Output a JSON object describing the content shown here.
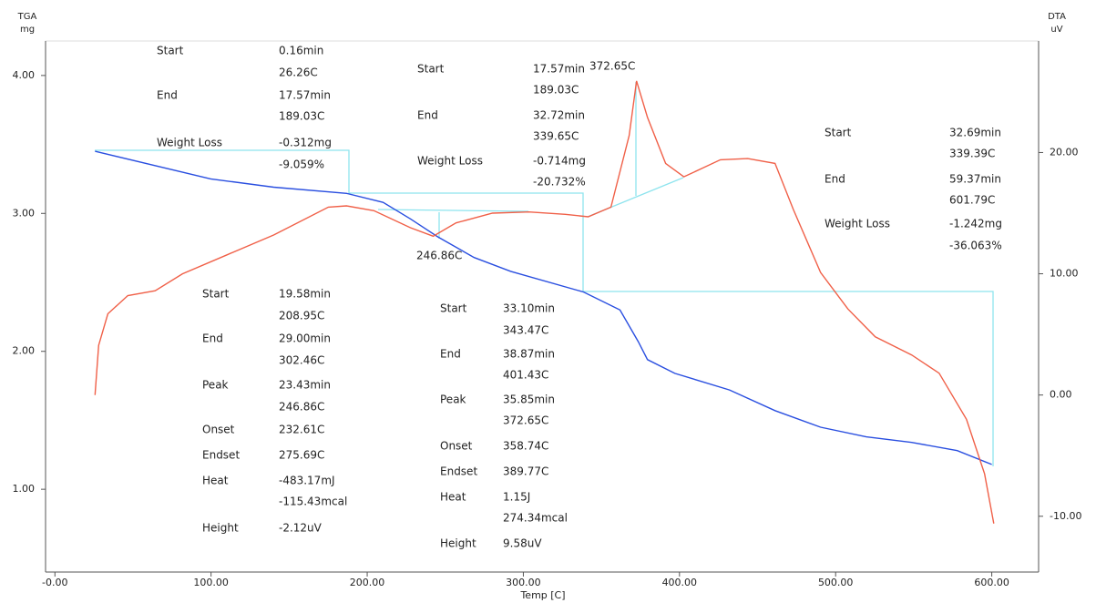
{
  "chart_data": {
    "type": "line",
    "y_label_top": "TGA",
    "y_label_unit": "mg",
    "y2_label_top": "DTA",
    "y2_label_unit": "uV",
    "x_label": "Temp [C]",
    "xlim": [
      -6,
      630
    ],
    "ylim": [
      0.4,
      4.25
    ],
    "y2lim": [
      -14.6,
      29.2
    ],
    "xticks": [
      {
        "value": 0,
        "label": "-0.00"
      },
      {
        "value": 100,
        "label": "100.00"
      },
      {
        "value": 200,
        "label": "200.00"
      },
      {
        "value": 300,
        "label": "300.00"
      },
      {
        "value": 400,
        "label": "400.00"
      },
      {
        "value": 500,
        "label": "500.00"
      },
      {
        "value": 600,
        "label": "600.00"
      }
    ],
    "yticks": [
      {
        "value": 1,
        "label": "1.00"
      },
      {
        "value": 2,
        "label": "2.00"
      },
      {
        "value": 3,
        "label": "3.00"
      },
      {
        "value": 4,
        "label": "4.00"
      }
    ],
    "y2ticks": [
      {
        "value": -10,
        "label": "-10.00"
      },
      {
        "value": 0,
        "label": "0.00"
      },
      {
        "value": 10,
        "label": "10.00"
      },
      {
        "value": 20,
        "label": "20.00"
      }
    ],
    "series": [
      {
        "name": "TGA",
        "color": "#2a4fe0",
        "x": [
          25.7,
          99.8,
          140.1,
          186.8,
          210.2,
          227.7,
          245.2,
          268.5,
          291.9,
          338.6,
          361.9,
          373.6,
          379.5,
          397,
          432,
          461.2,
          490.4,
          519.6,
          548.7,
          577.9,
          600
        ],
        "values": [
          3.45,
          3.25,
          3.19,
          3.145,
          3.08,
          2.96,
          2.83,
          2.68,
          2.58,
          2.43,
          2.3,
          2.07,
          1.94,
          1.84,
          1.72,
          1.57,
          1.45,
          1.38,
          1.34,
          1.28,
          1.18
        ]
      },
      {
        "name": "DTA",
        "color": "#f06048",
        "axis": "y2",
        "x": [
          25.7,
          28,
          33.9,
          46.7,
          64.2,
          81.7,
          110.9,
          140.1,
          175.1,
          186.8,
          204.3,
          227.7,
          242.3,
          256.9,
          280.2,
          303.6,
          326.9,
          341.5,
          356.1,
          367.8,
          372.5,
          379.5,
          391.1,
          402.8,
          414.5,
          426.2,
          443.7,
          461.2,
          472.9,
          490.4,
          507.9,
          525.4,
          548.7,
          566.3,
          583.8,
          595.4,
          601.3
        ],
        "values": [
          0,
          4.1,
          6.7,
          8.2,
          8.6,
          10,
          11.6,
          13.2,
          15.5,
          15.6,
          15.2,
          13.8,
          13.1,
          14.2,
          15,
          15.1,
          14.9,
          14.7,
          15.5,
          21.4,
          25.9,
          22.9,
          19.1,
          18,
          18.7,
          19.4,
          19.5,
          19.1,
          15.3,
          10.1,
          7.1,
          4.8,
          3.3,
          1.8,
          -2,
          -6.5,
          -10.6
        ]
      }
    ],
    "annotations": [
      "Start",
      "0.16min",
      "26.26C",
      "End",
      "17.57min",
      "189.03C",
      "Weight Loss",
      "-0.312mg",
      "-9.059%",
      "Start",
      "17.57min",
      "189.03C",
      "End",
      "32.72min",
      "339.65C",
      "Weight Loss",
      "-0.714mg",
      "-20.732%",
      "372.65C",
      "Start",
      "32.69min",
      "339.39C",
      "End",
      "59.37min",
      "601.79C",
      "Weight Loss",
      "-1.242mg",
      "-36.063%",
      "246.86C",
      "Start",
      "19.58min",
      "208.95C",
      "End",
      "29.00min",
      "302.46C",
      "Peak",
      "23.43min",
      "246.86C",
      "Onset",
      "232.61C",
      "Endset",
      "275.69C",
      "Heat",
      "-483.17mJ",
      "-115.43mcal",
      "Height",
      "-2.12uV",
      "Start",
      "33.10min",
      "343.47C",
      "End",
      "38.87min",
      "401.43C",
      "Peak",
      "35.85min",
      "372.65C",
      "Onset",
      "358.74C",
      "Endset",
      "389.77C",
      "Heat",
      "1.15J",
      "274.34mcal",
      "Height",
      "9.58uV"
    ]
  }
}
